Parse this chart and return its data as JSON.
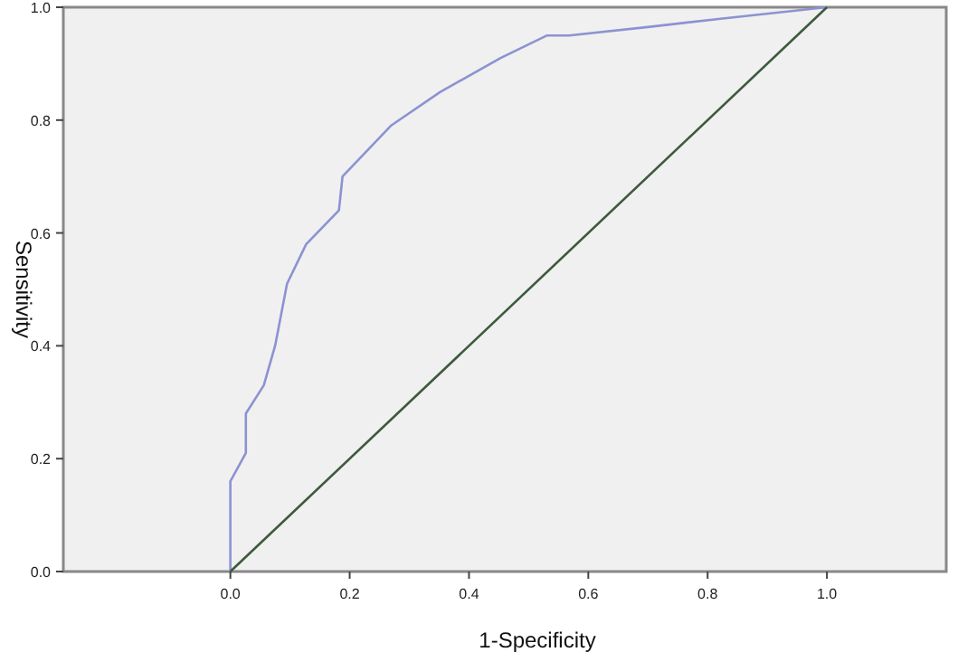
{
  "chart_data": {
    "type": "line",
    "xlabel": "1-Specificity",
    "ylabel": "Sensitivity",
    "xlim": [
      -0.28,
      1.2
    ],
    "ylim": [
      0,
      1
    ],
    "xticks": [
      {
        "value": 0,
        "label": "0.0"
      },
      {
        "value": 0.2,
        "label": "0.2"
      },
      {
        "value": 0.4,
        "label": "0.4"
      },
      {
        "value": 0.6,
        "label": "0.6"
      },
      {
        "value": 0.8,
        "label": "0.8"
      },
      {
        "value": 1,
        "label": "1.0"
      }
    ],
    "yticks": [
      {
        "value": 0,
        "label": "0.0"
      },
      {
        "value": 0.2,
        "label": "0.2"
      },
      {
        "value": 0.4,
        "label": "0.4"
      },
      {
        "value": 0.6,
        "label": "0.6"
      },
      {
        "value": 0.8,
        "label": "0.8"
      },
      {
        "value": 1,
        "label": "1.0"
      }
    ],
    "grid": false,
    "marker": "none",
    "line_style": "solid",
    "series": [
      {
        "color": "#8c92d2",
        "x": [
          0,
          0,
          0.026,
          0.026,
          0.056,
          0.075,
          0.095,
          0.127,
          0.182,
          0.188,
          0.269,
          0.352,
          0.453,
          0.531,
          0.568,
          0.7,
          0.825,
          1
        ],
        "values": [
          0,
          0.16,
          0.21,
          0.28,
          0.33,
          0.4,
          0.51,
          0.58,
          0.64,
          0.7,
          0.79,
          0.85,
          0.91,
          0.95,
          0.95,
          0.965,
          0.98,
          1
        ]
      },
      {
        "color": "#3d5a3d",
        "x": [
          0,
          1
        ],
        "values": [
          0,
          1
        ]
      }
    ]
  }
}
